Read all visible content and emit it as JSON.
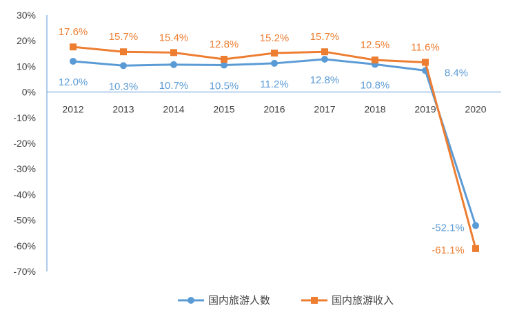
{
  "chart_data": {
    "type": "line",
    "title": "",
    "xlabel": "",
    "ylabel": "",
    "categories": [
      "2012",
      "2013",
      "2014",
      "2015",
      "2016",
      "2017",
      "2018",
      "2019",
      "2020"
    ],
    "ylim": [
      -70,
      30
    ],
    "yticks": [
      30,
      20,
      10,
      0,
      -10,
      -20,
      -30,
      -40,
      -50,
      -60,
      -70
    ],
    "ytick_labels": [
      "30%",
      "20%",
      "10%",
      "0%",
      "-10%",
      "-20%",
      "-30%",
      "-40%",
      "-50%",
      "-60%",
      "-70%"
    ],
    "grid": false,
    "legend_position": "bottom",
    "series": [
      {
        "name": "国内旅游人数",
        "color": "#5B9BD5",
        "marker": "circle",
        "values": [
          12.0,
          10.3,
          10.7,
          10.5,
          11.2,
          12.8,
          10.8,
          8.4,
          -52.1
        ],
        "labels": [
          "12.0%",
          "10.3%",
          "10.7%",
          "10.5%",
          "11.2%",
          "12.8%",
          "10.8%",
          "8.4%",
          "-52.1%"
        ]
      },
      {
        "name": "国内旅游收入",
        "color": "#ED7D31",
        "marker": "square",
        "values": [
          17.6,
          15.7,
          15.4,
          12.8,
          15.2,
          15.7,
          12.5,
          11.6,
          -61.1
        ],
        "labels": [
          "17.6%",
          "15.7%",
          "15.4%",
          "12.8%",
          "15.2%",
          "15.7%",
          "12.5%",
          "11.6%",
          "-61.1%"
        ]
      }
    ]
  }
}
